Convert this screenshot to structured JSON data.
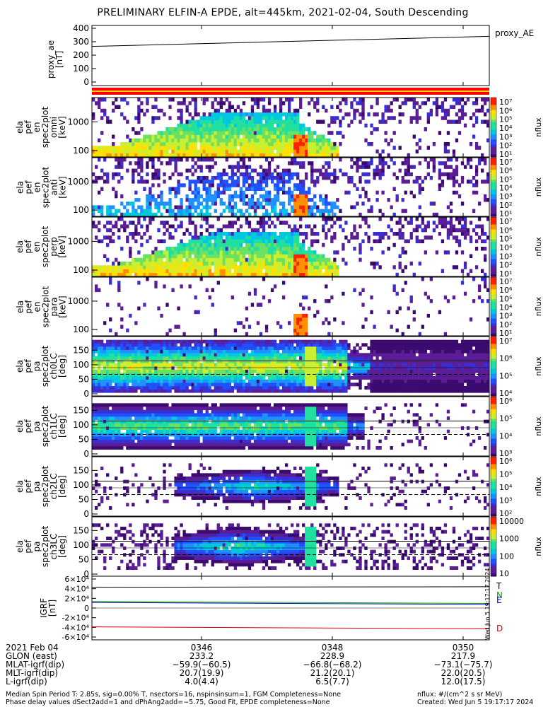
{
  "title": "PRELIMINARY ELFIN-A EPDE, alt=445km, 2021-02-04, South Descending",
  "chart_data": [
    {
      "type": "line",
      "id": "proxy_ae",
      "ylabel_lines": [
        "proxy_ae",
        "[nT]"
      ],
      "yticks": [
        "0",
        "100",
        "200",
        "300",
        "400"
      ],
      "ylim": [
        0,
        420
      ],
      "legend": "proxy_AE",
      "series": [
        {
          "name": "proxy_AE",
          "start": 265,
          "end": 340,
          "color": "#000000"
        }
      ]
    },
    {
      "type": "heatmap",
      "id": "pef_en_omni",
      "ylabel_lines": [
        "ela",
        "pef",
        "en",
        "spec2plot",
        "omni",
        "[keV]"
      ],
      "yticks": [
        "100",
        "1000"
      ],
      "yscale": "log",
      "colorbar": {
        "label": "nflux",
        "ticks": [
          "10⁷",
          "10⁶",
          "10⁵",
          "10⁴",
          "10³",
          "10²",
          "10¹"
        ]
      }
    },
    {
      "type": "heatmap",
      "id": "pef_en_anti",
      "ylabel_lines": [
        "ela",
        "pef",
        "en",
        "spec2plot",
        "anti",
        "[keV]"
      ],
      "yticks": [
        "100",
        "1000"
      ],
      "yscale": "log",
      "colorbar": {
        "label": "nflux",
        "ticks": [
          "10⁷",
          "10⁶",
          "10⁵",
          "10⁴",
          "10³",
          "10²",
          "10¹"
        ]
      }
    },
    {
      "type": "heatmap",
      "id": "pef_en_perp",
      "ylabel_lines": [
        "ela",
        "pef",
        "en",
        "spec2plot",
        "perp",
        "[keV]"
      ],
      "yticks": [
        "100",
        "1000"
      ],
      "yscale": "log",
      "colorbar": {
        "label": "nflux",
        "ticks": [
          "10⁷",
          "10⁶",
          "10⁵",
          "10⁴",
          "10³",
          "10²",
          "10¹"
        ]
      }
    },
    {
      "type": "heatmap",
      "id": "pef_en_para",
      "ylabel_lines": [
        "ela",
        "pef",
        "en",
        "spec2plot",
        "para",
        "[keV]"
      ],
      "yticks": [
        "100",
        "1000"
      ],
      "yscale": "log",
      "colorbar": {
        "label": "nflux",
        "ticks": [
          "10⁷",
          "10⁶",
          "10⁵",
          "10⁴",
          "10³",
          "10²",
          "10¹"
        ]
      }
    },
    {
      "type": "heatmap",
      "id": "pef_pa_ch0",
      "ylabel_lines": [
        "ela",
        "pef",
        "pa",
        "spec2plot",
        "ch0LC",
        "[deg]"
      ],
      "yticks": [
        "0",
        "50",
        "100",
        "150"
      ],
      "ylim": [
        0,
        180
      ],
      "colorbar": {
        "label": "nflux",
        "ticks": [
          "10⁷",
          "10⁶",
          "10⁵",
          "10⁴"
        ]
      }
    },
    {
      "type": "heatmap",
      "id": "pef_pa_ch1",
      "ylabel_lines": [
        "ela",
        "pef",
        "pa",
        "spec2plot",
        "ch1LC",
        "[deg]"
      ],
      "yticks": [
        "0",
        "50",
        "100",
        "150"
      ],
      "ylim": [
        0,
        180
      ],
      "colorbar": {
        "label": "nflux",
        "ticks": [
          "10⁶",
          "10⁵",
          "10⁴",
          "10³"
        ]
      }
    },
    {
      "type": "heatmap",
      "id": "pef_pa_ch2",
      "ylabel_lines": [
        "ela",
        "pef",
        "pa",
        "spec2plot",
        "ch2LC",
        "[deg]"
      ],
      "yticks": [
        "0",
        "50",
        "100",
        "150"
      ],
      "ylim": [
        0,
        180
      ],
      "colorbar": {
        "label": "nflux",
        "ticks": [
          "10⁶",
          "10⁵",
          "10⁴",
          "10³",
          "10²"
        ]
      }
    },
    {
      "type": "heatmap",
      "id": "pef_pa_ch3",
      "ylabel_lines": [
        "ela",
        "pef",
        "pa",
        "spec2plot",
        "ch3LC",
        "[deg]"
      ],
      "yticks": [
        "0",
        "50",
        "100",
        "150"
      ],
      "ylim": [
        0,
        180
      ],
      "colorbar": {
        "label": "nflux",
        "ticks": [
          "10000",
          "1000",
          "100",
          "10"
        ]
      }
    },
    {
      "type": "line",
      "id": "igrf",
      "ylabel_lines": [
        "IGRF",
        "[nT]"
      ],
      "yticks": [
        "-6×10⁴",
        "-4×10⁴",
        "-2×10⁴",
        "0",
        "2×10⁴",
        "4×10⁴",
        "6×10⁴"
      ],
      "ylim": [
        -60000,
        60000
      ],
      "series": [
        {
          "name": "T",
          "start": 43000,
          "end": 44000,
          "color": "#000000"
        },
        {
          "name": "N",
          "start": 13500,
          "end": 9500,
          "color": "#00aa00"
        },
        {
          "name": "E",
          "start": 11500,
          "end": 7500,
          "color": "#0000cc"
        },
        {
          "name": "D",
          "start": -39000,
          "end": -43000,
          "color": "#dd0000"
        }
      ],
      "legend_labels": {
        "T": "T",
        "N": "N",
        "E": "E",
        "D": "D"
      }
    }
  ],
  "side_stamp": "Wed Jun  5 19:17:17 2024",
  "footer": {
    "row_labels": [
      "2021 Feb 04",
      "GLON (east)",
      "MLAT-igrf(dip)",
      "MLT-igrf(dip)",
      "L-igrf(dip)"
    ],
    "columns": [
      {
        "values": [
          "0346",
          "233.2",
          "−59.9(−60.5)",
          "20.7(19.9)",
          "4.0(4.4)"
        ]
      },
      {
        "values": [
          "0348",
          "228.9",
          "−66.8(−68.2)",
          "21.2(20.1)",
          "6.5(7.7)"
        ]
      },
      {
        "values": [
          "0350",
          "217.9",
          "−73.1(−75.7)",
          "22.0(20.5)",
          "12.0(17.5)"
        ]
      }
    ],
    "note_line1": "Median Spin Period T: 2.85s, sig=0.00% T, nsectors=16, nspinsinsum=1, FGM Completeness=None",
    "note_line2": "Phase delay values dSect2add=1 and dPhAng2add=−5.75, Good Fit, EPDE completeness=None",
    "right_line1": "nflux: #/(cm^2 s sr MeV)",
    "right_line2": "Created: Wed Jun  5 19:17:17 2024"
  }
}
